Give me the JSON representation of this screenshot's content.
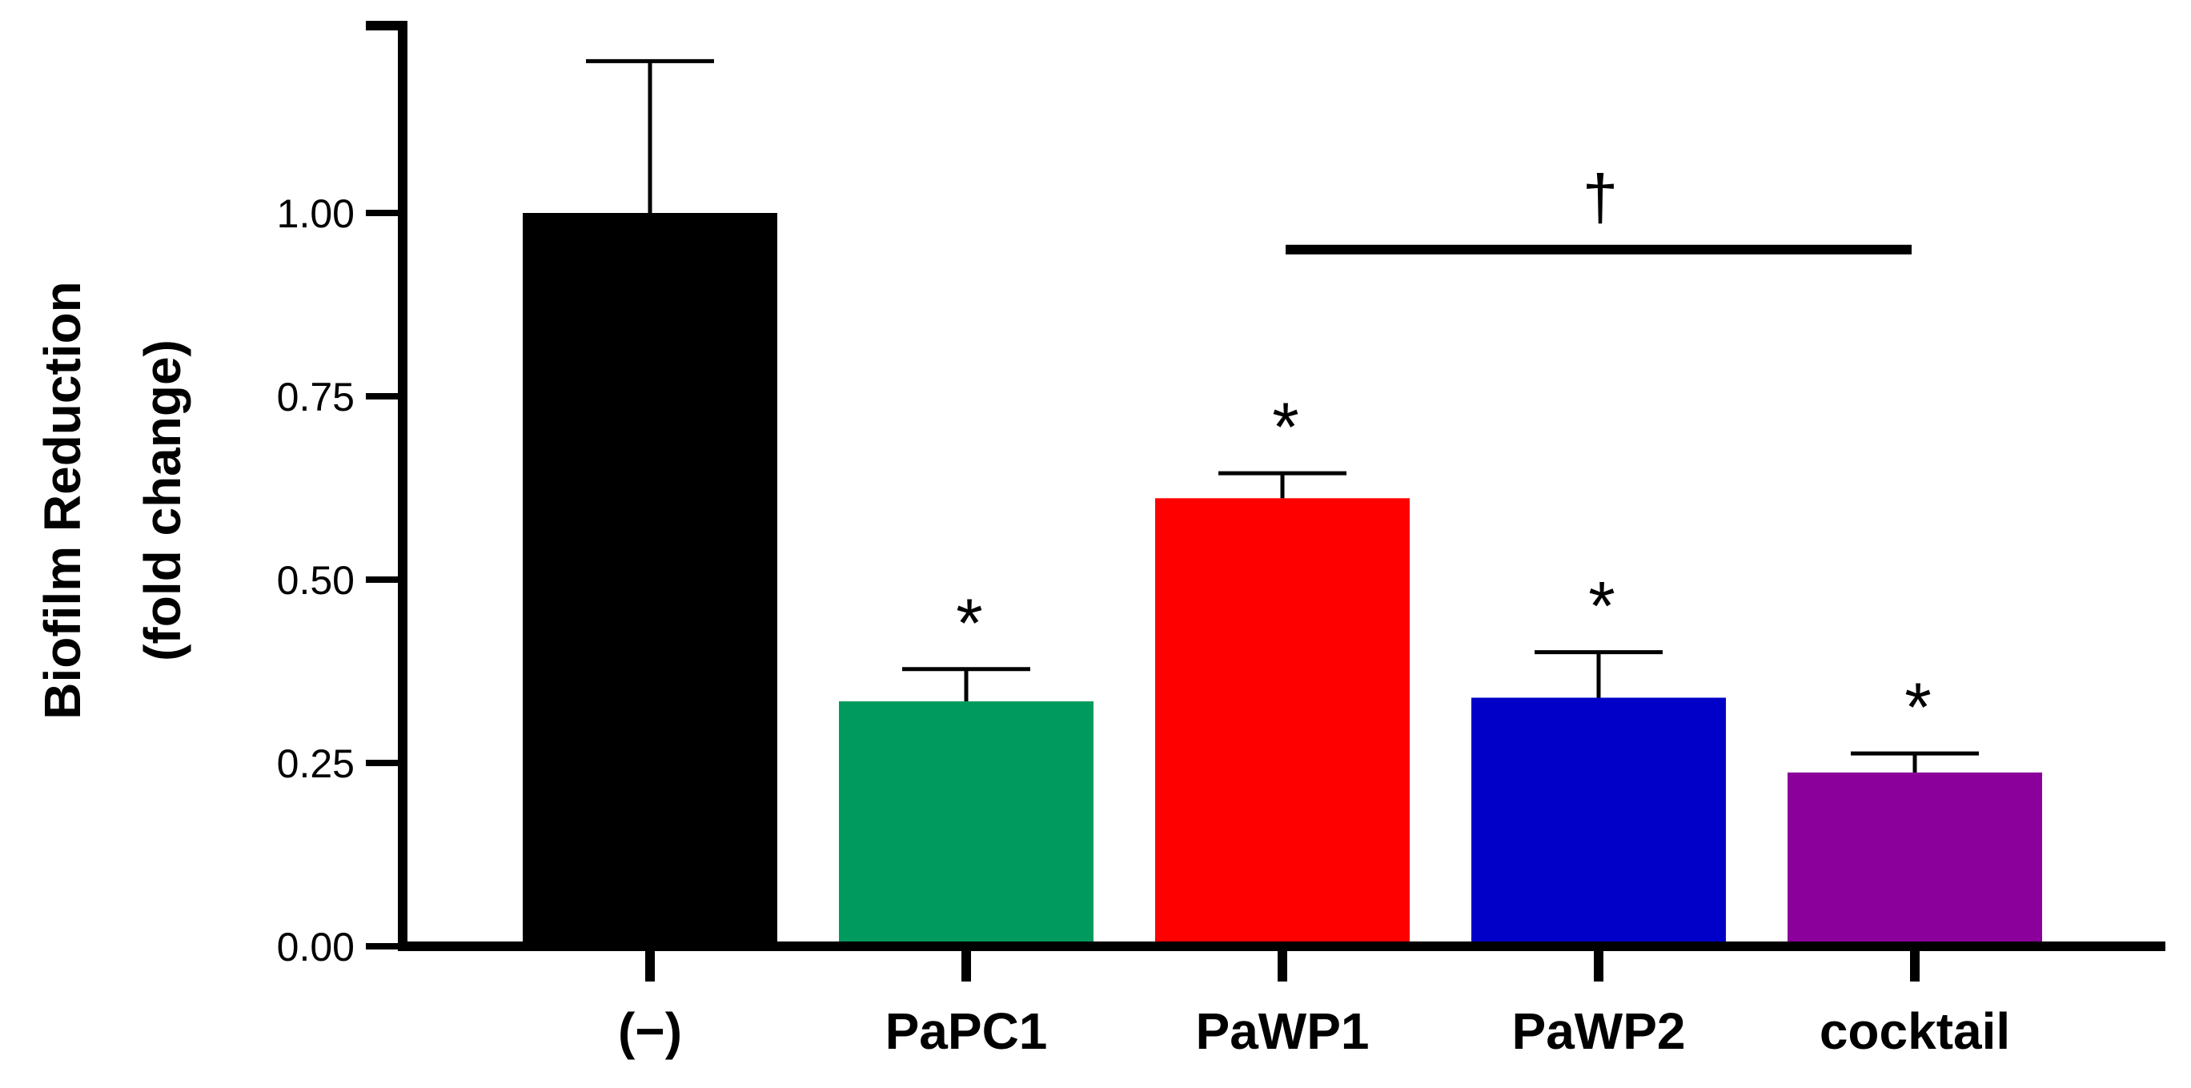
{
  "chart_data": {
    "type": "bar",
    "title": "",
    "xlabel": "",
    "ylabel": [
      "Biofilm Reduction",
      "(fold change)"
    ],
    "ylim": [
      0,
      1.25
    ],
    "yticks": [
      0.0,
      0.25,
      0.5,
      0.75,
      1.0
    ],
    "ytick_labels": [
      "0.00",
      "0.25",
      "0.50",
      "0.75",
      "1.00"
    ],
    "grid": false,
    "legend": "none",
    "categories": [
      "(−)",
      "PaPC1",
      "PaWP1",
      "PaWP2",
      "cocktail"
    ],
    "values": [
      1.0,
      0.334,
      0.611,
      0.339,
      0.237
    ],
    "error_upper": [
      0.207,
      0.044,
      0.034,
      0.062,
      0.026
    ],
    "colors": [
      "#000000",
      "#009A5E",
      "#FF0000",
      "#0000C8",
      "#8B009B"
    ],
    "annotations": [
      {
        "category": "PaPC1",
        "text": "*"
      },
      {
        "category": "PaWP1",
        "text": "*"
      },
      {
        "category": "PaWP2",
        "text": "*"
      },
      {
        "category": "cocktail",
        "text": "*"
      }
    ],
    "bracket": {
      "from": "PaWP1",
      "to": "cocktail",
      "level": 0.95,
      "text": "†"
    }
  }
}
